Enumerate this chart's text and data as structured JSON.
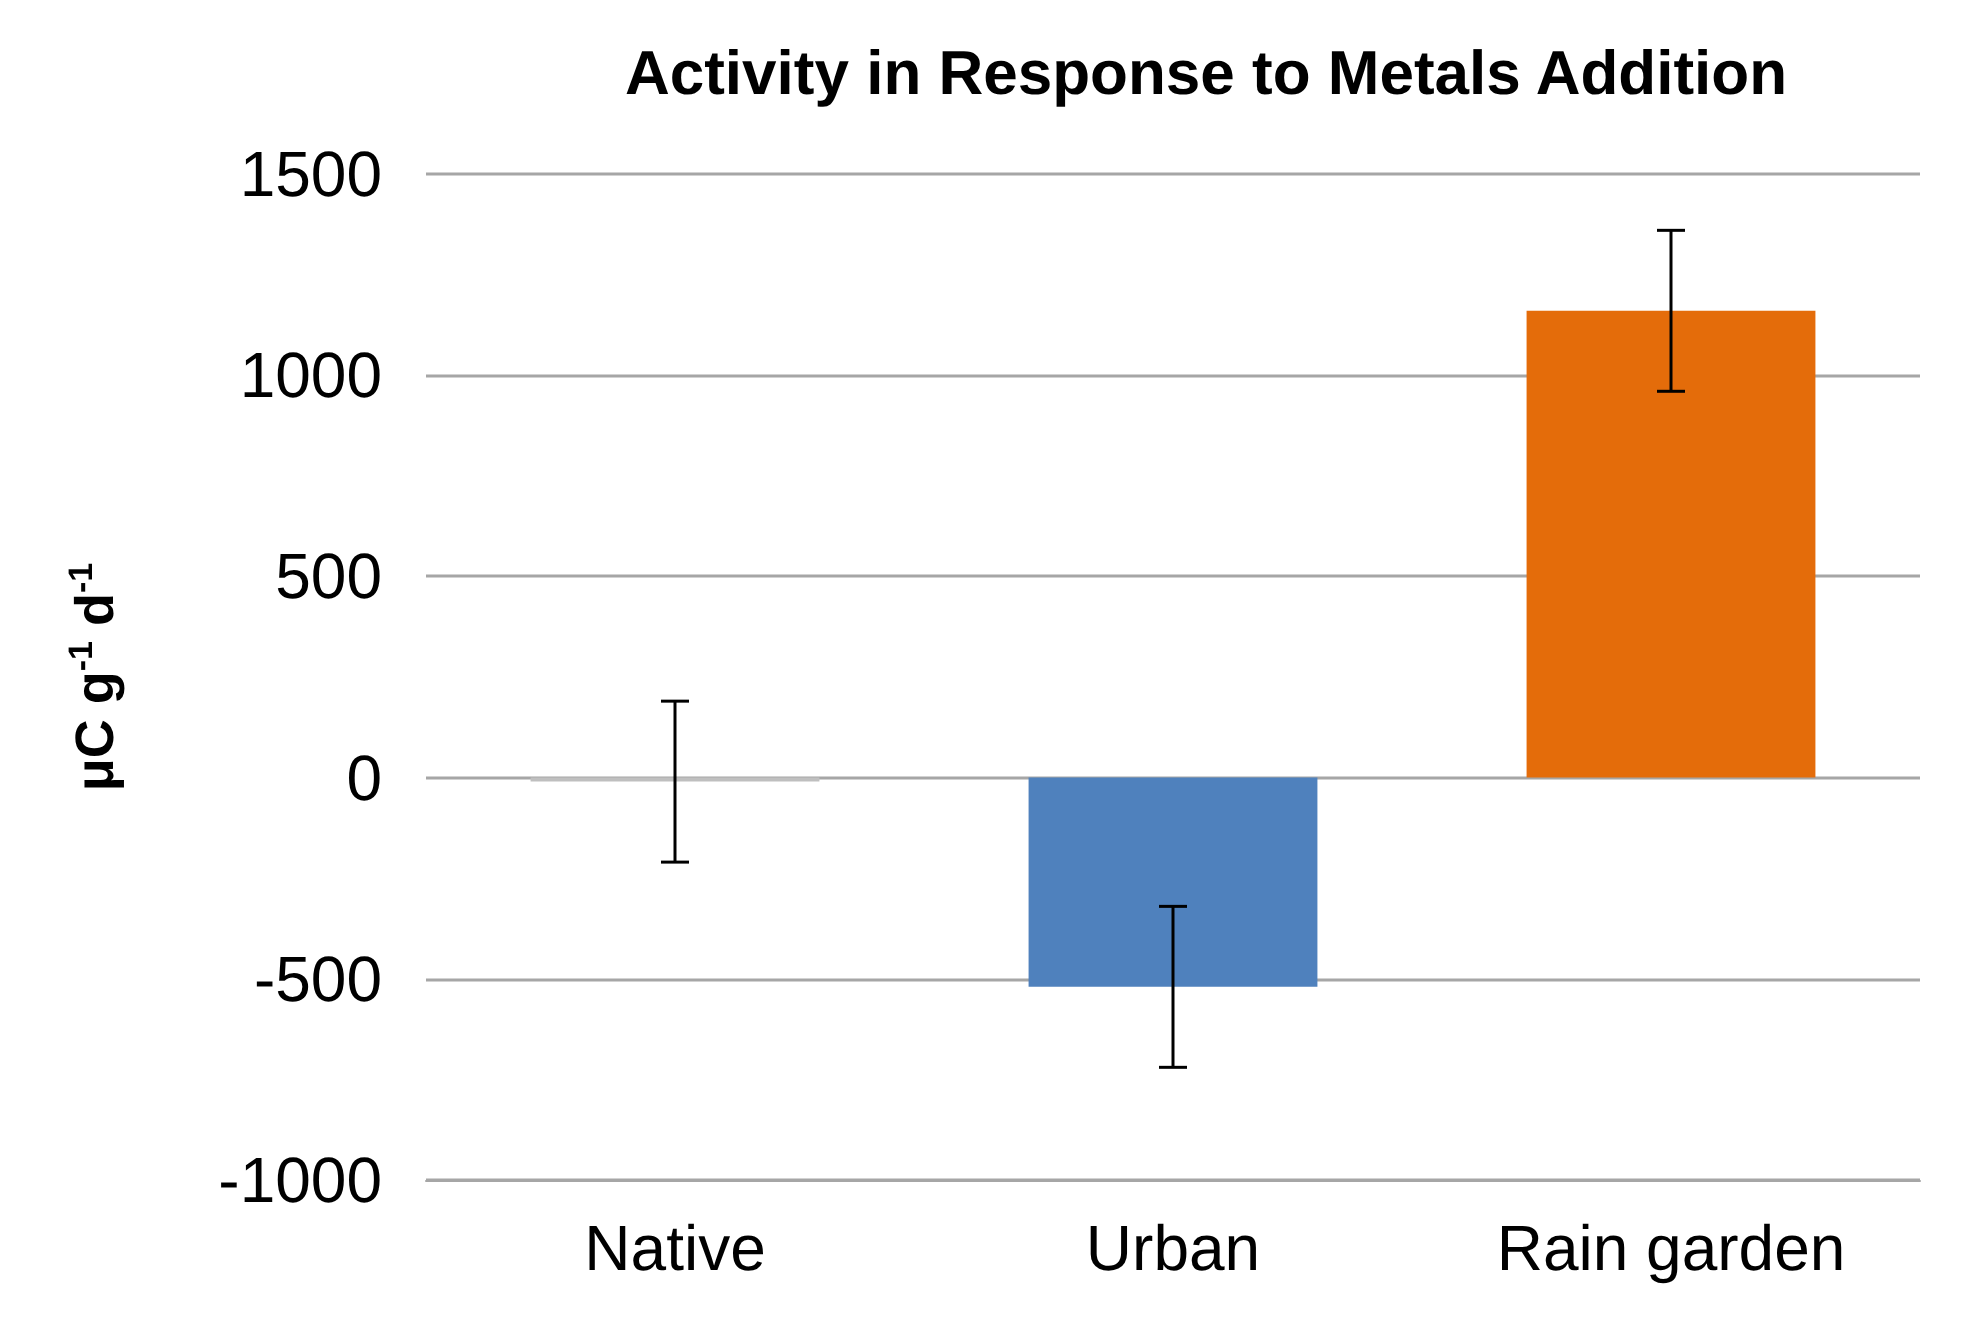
{
  "chart_data": {
    "type": "bar",
    "title": "Activity in Response to Metals Addition",
    "ylabel": "μC g$^{-1}$ d$^{-1}$",
    "categories": [
      "Native",
      "Urban",
      "Rain garden"
    ],
    "values": [
      -10,
      -520,
      1160
    ],
    "colors": [
      "#bfbfbf",
      "#4f81bd",
      "#e46c0a"
    ],
    "errors": [
      200,
      200,
      200
    ],
    "ylim": [
      -1000,
      1500
    ],
    "yticks": [
      -1000,
      -500,
      0,
      500,
      1000,
      1500
    ],
    "grid": "y"
  }
}
